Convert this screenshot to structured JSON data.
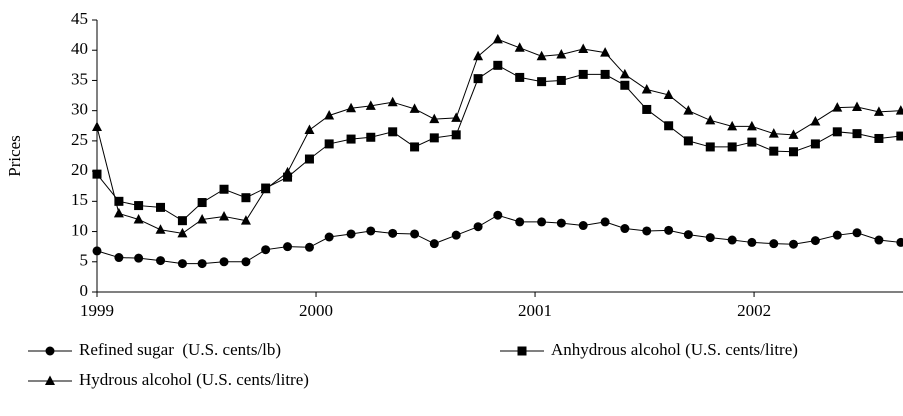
{
  "chart_data": {
    "type": "line",
    "y_label": "Prices",
    "x": [
      1999.0,
      1999.1,
      1999.19,
      1999.29,
      1999.39,
      1999.48,
      1999.58,
      1999.68,
      1999.77,
      1999.87,
      1999.97,
      2000.06,
      2000.16,
      2000.25,
      2000.35,
      2000.45,
      2000.54,
      2000.64,
      2000.74,
      2000.83,
      2000.93,
      2001.03,
      2001.12,
      2001.22,
      2001.32,
      2001.41,
      2001.51,
      2001.61,
      2001.7,
      2001.8,
      2001.9,
      2001.99,
      2002.09,
      2002.18,
      2002.28,
      2002.38,
      2002.47,
      2002.57,
      2002.67
    ],
    "series": [
      {
        "name": "Refined sugar  (U.S. cents/lb)",
        "color": "#000000",
        "marker": "circle",
        "values": [
          6.8,
          5.7,
          5.6,
          5.2,
          4.7,
          4.7,
          5,
          5,
          7,
          7.5,
          7.4,
          9.1,
          9.6,
          10.1,
          9.7,
          9.6,
          8,
          9.4,
          10.8,
          12.7,
          11.6,
          11.6,
          11.4,
          11,
          11.6,
          10.5,
          10.1,
          10.2,
          9.5,
          9,
          8.6,
          8.2,
          8,
          7.9,
          8.5,
          9.4,
          9.8,
          8.6,
          8.2
        ]
      },
      {
        "name": "Anhydrous alcohol (U.S. cents/litre)",
        "color": "#000000",
        "marker": "square",
        "values": [
          19.5,
          15,
          14.3,
          14,
          11.8,
          14.8,
          17,
          15.6,
          17.2,
          19,
          22,
          24.5,
          25.3,
          25.6,
          26.5,
          24,
          25.5,
          26,
          35.3,
          37.5,
          35.5,
          34.8,
          35,
          36,
          36,
          34.2,
          30.2,
          27.5,
          25,
          24,
          24,
          24.8,
          23.3,
          23.2,
          24.5,
          26.5,
          26.2,
          25.4,
          25.8
        ]
      },
      {
        "name": "Hydrous alcohol (U.S. cents/litre)",
        "color": "#000000",
        "marker": "triangle",
        "values": [
          27.3,
          13,
          12,
          10.3,
          9.7,
          12,
          12.5,
          11.8,
          17,
          19.8,
          26.8,
          29.2,
          30.4,
          30.8,
          31.4,
          30.3,
          28.6,
          28.8,
          39,
          41.8,
          40.4,
          39,
          39.3,
          40.2,
          39.6,
          36,
          33.5,
          32.6,
          30,
          28.4,
          27.4,
          27.4,
          26.2,
          26,
          28.2,
          30.5,
          30.6,
          29.8,
          30
        ]
      }
    ],
    "xlim": [
      1999,
      2002.68
    ],
    "xticks": [
      1999,
      2000,
      2001,
      2002
    ],
    "ylim": [
      0,
      45
    ],
    "yticks": [
      0,
      5,
      10,
      15,
      20,
      25,
      30,
      35,
      40,
      45
    ],
    "grid": false,
    "legend": "bottom"
  }
}
